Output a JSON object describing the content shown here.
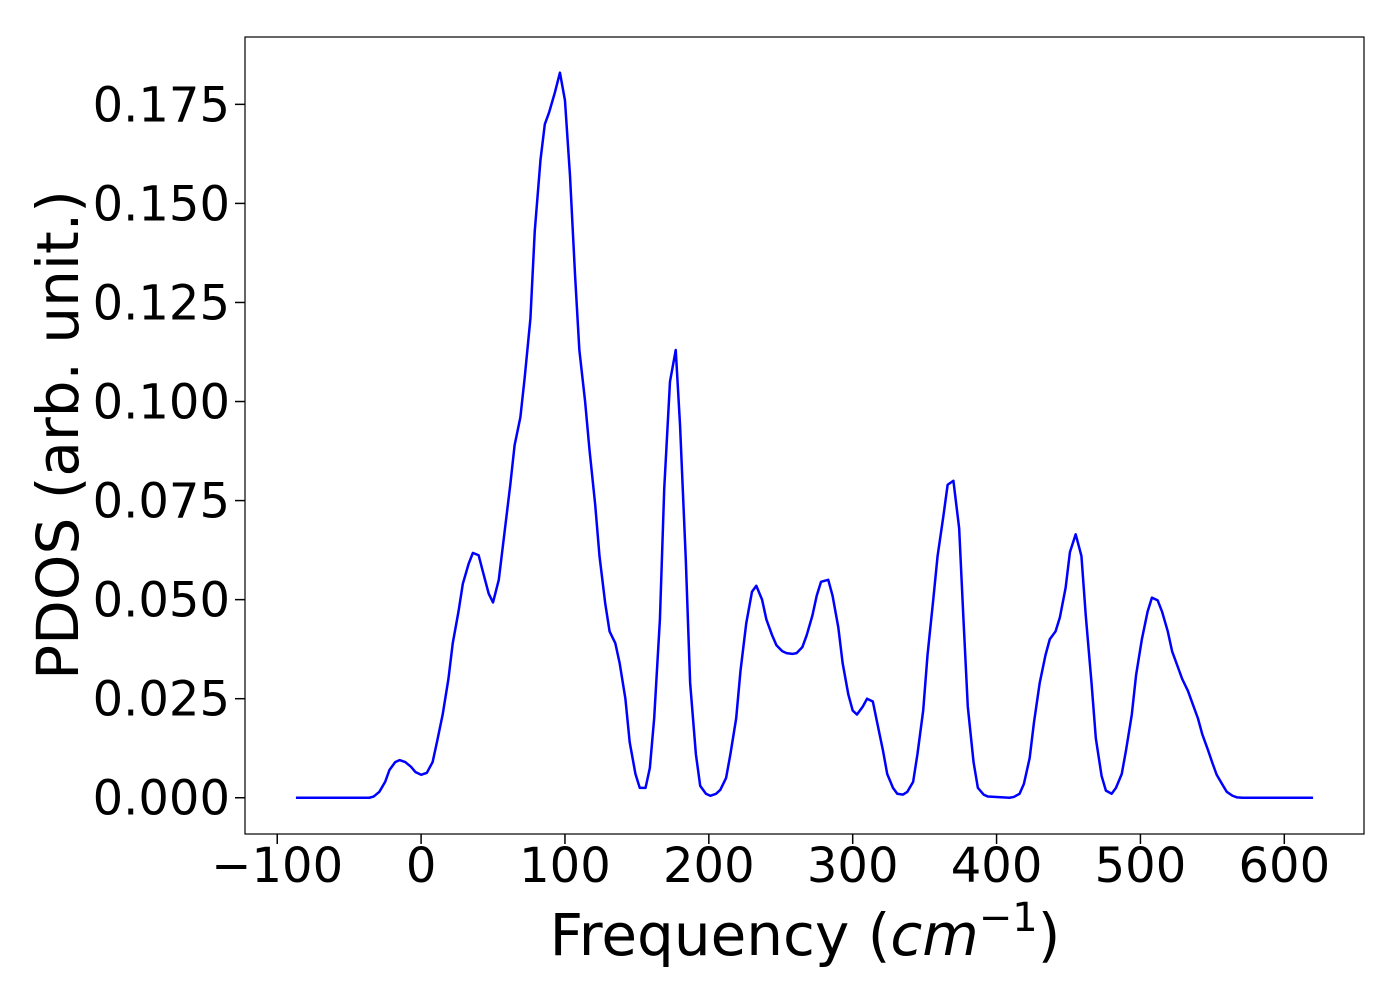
{
  "chart_data": {
    "type": "line",
    "ylabel": "PDOS (arb. unit.)",
    "xlabel": {
      "prefix": "Frequency (",
      "unit": "cm",
      "exponent": "−1",
      "suffix": ")"
    },
    "color": "#0000ff",
    "x": [
      -87,
      -36,
      -33,
      -29,
      -25,
      -22,
      -18,
      -15,
      -11,
      -7,
      -4,
      0,
      4,
      8,
      11,
      15,
      19,
      22,
      26,
      29,
      33,
      36,
      40,
      43,
      47,
      50,
      54,
      58,
      62,
      65,
      69,
      72,
      76,
      79,
      83,
      86,
      89,
      93,
      96.5,
      100,
      103.5,
      107,
      110,
      114,
      117,
      121,
      124,
      128,
      131,
      135,
      138,
      142,
      145,
      149,
      152,
      156,
      159,
      162,
      166,
      169,
      173,
      177,
      180,
      184,
      187,
      191,
      194,
      198,
      201,
      205,
      208,
      212,
      215,
      219,
      222,
      226,
      230,
      233,
      237,
      240,
      244,
      247,
      251,
      254,
      258,
      261,
      265,
      268,
      272,
      275,
      278,
      283,
      286,
      290,
      293,
      297,
      300,
      303,
      307,
      310,
      314,
      317,
      321,
      324,
      328,
      331,
      335,
      338,
      342,
      345,
      349,
      352,
      356,
      359,
      363,
      366,
      370,
      374,
      377,
      380,
      384,
      387,
      391,
      394,
      409,
      412,
      416,
      419,
      423,
      426,
      430,
      434,
      437,
      441,
      444,
      448,
      451,
      455,
      459,
      462,
      466,
      469,
      473,
      476,
      480,
      483,
      487,
      490,
      494,
      497,
      501,
      505,
      508,
      512,
      515,
      519,
      522,
      526,
      529,
      533,
      536,
      540,
      543,
      547,
      550,
      553,
      557,
      560,
      564,
      567,
      571,
      620
    ],
    "values": [
      0,
      0,
      0.0003,
      0.0015,
      0.004,
      0.007,
      0.009,
      0.0095,
      0.009,
      0.0078,
      0.0065,
      0.0058,
      0.0063,
      0.009,
      0.014,
      0.021,
      0.03,
      0.039,
      0.047,
      0.054,
      0.059,
      0.0618,
      0.0612,
      0.057,
      0.0515,
      0.0493,
      0.055,
      0.067,
      0.079,
      0.089,
      0.096,
      0.106,
      0.121,
      0.143,
      0.161,
      0.17,
      0.173,
      0.178,
      0.183,
      0.176,
      0.157,
      0.132,
      0.113,
      0.1,
      0.088,
      0.074,
      0.061,
      0.049,
      0.042,
      0.039,
      0.034,
      0.025,
      0.014,
      0.006,
      0.0025,
      0.0025,
      0.0075,
      0.02,
      0.045,
      0.078,
      0.105,
      0.113,
      0.094,
      0.06,
      0.029,
      0.011,
      0.003,
      0.001,
      0.0005,
      0.001,
      0.002,
      0.005,
      0.011,
      0.02,
      0.032,
      0.044,
      0.052,
      0.0535,
      0.05,
      0.045,
      0.041,
      0.0385,
      0.037,
      0.0365,
      0.0363,
      0.0365,
      0.038,
      0.041,
      0.046,
      0.051,
      0.0545,
      0.055,
      0.051,
      0.043,
      0.034,
      0.026,
      0.022,
      0.021,
      0.023,
      0.025,
      0.0243,
      0.019,
      0.012,
      0.006,
      0.0025,
      0.001,
      0.0008,
      0.0015,
      0.004,
      0.011,
      0.022,
      0.036,
      0.05,
      0.061,
      0.071,
      0.079,
      0.08,
      0.068,
      0.045,
      0.023,
      0.009,
      0.0025,
      0.0008,
      0.0003,
      0,
      0.0002,
      0.001,
      0.0035,
      0.01,
      0.019,
      0.029,
      0.036,
      0.04,
      0.042,
      0.0455,
      0.053,
      0.062,
      0.0665,
      0.061,
      0.046,
      0.029,
      0.015,
      0.0055,
      0.0018,
      0.001,
      0.0025,
      0.006,
      0.012,
      0.021,
      0.031,
      0.04,
      0.047,
      0.0505,
      0.0498,
      0.047,
      0.042,
      0.037,
      0.033,
      0.03,
      0.027,
      0.024,
      0.02,
      0.016,
      0.012,
      0.0088,
      0.0058,
      0.0033,
      0.0015,
      0.0005,
      0.0001,
      0,
      0
    ],
    "xlim": [
      -122.4,
      655.4
    ],
    "ylim": [
      -0.00915,
      0.192
    ],
    "xticks": [
      {
        "value": -100,
        "label": "−100"
      },
      0,
      100,
      200,
      300,
      400,
      500,
      600
    ],
    "yticks": [
      {
        "value": 0,
        "label": "0.000"
      },
      {
        "value": 0.025,
        "label": "0.025"
      },
      {
        "value": 0.05,
        "label": "0.050"
      },
      {
        "value": 0.075,
        "label": "0.075"
      },
      {
        "value": 0.1,
        "label": "0.100"
      },
      {
        "value": 0.125,
        "label": "0.125"
      },
      {
        "value": 0.15,
        "label": "0.150"
      },
      {
        "value": 0.175,
        "label": "0.175"
      }
    ]
  }
}
